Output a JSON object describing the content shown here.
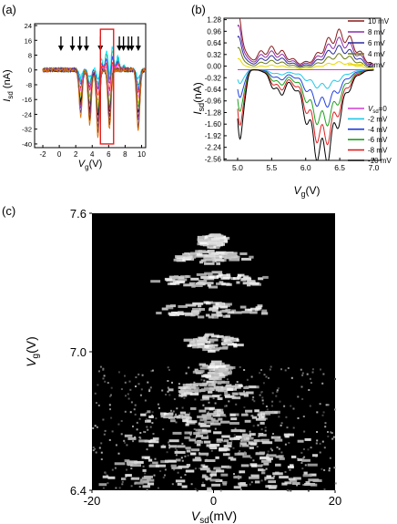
{
  "chart_data": [
    {
      "panel": "(a)",
      "type": "line",
      "xlabel": {
        "main": "V",
        "sub": "g",
        "unit": "(V)"
      },
      "ylabel": {
        "main": "I",
        "sub": "sd",
        "unit": "(nA)"
      },
      "xlim": [
        -3,
        10.5
      ],
      "ylim": [
        -42,
        25
      ],
      "xticks": [
        "-2",
        "0",
        "2",
        "4",
        "6",
        "8",
        "10"
      ],
      "xtick_values": [
        -2,
        0,
        2,
        4,
        6,
        8,
        10
      ],
      "yticks": [
        "24",
        "16",
        "8",
        "0",
        "-8",
        "-16",
        "-24",
        "-32",
        "-40"
      ],
      "ytick_values": [
        24,
        16,
        8,
        0,
        -8,
        -16,
        -24,
        -32,
        -40
      ],
      "arrow_positions": [
        0.2,
        1.6,
        2.5,
        3.3,
        5.0,
        7.3,
        7.8,
        8.4,
        8.8,
        9.6
      ],
      "highlight_box": {
        "x": [
          5.0,
          6.6
        ],
        "y": [
          -40,
          22
        ],
        "color": "#e02020"
      },
      "dip_centers": [
        2.6,
        3.7,
        4.7,
        6.1,
        9.6
      ],
      "dip_depths": [
        -25,
        -30,
        -36,
        -32,
        -33
      ]
    },
    {
      "panel": "(b)",
      "type": "line",
      "xlabel": {
        "main": "V",
        "sub": "g",
        "unit": "(V)"
      },
      "ylabel": {
        "main": "I",
        "sub": "sd",
        "unit": "(nA)"
      },
      "xlim": [
        4.8,
        7.1
      ],
      "ylim": [
        -2.6,
        1.32
      ],
      "xticks": [
        "5.0",
        "5.5",
        "6.0",
        "6.5",
        "7.0"
      ],
      "xtick_values": [
        5.0,
        5.5,
        6.0,
        6.5,
        7.0
      ],
      "yticks": [
        "1.28",
        "0.96",
        "0.64",
        "0.32",
        "0.00",
        "-0.32",
        "-0.64",
        "-0.96",
        "-1.28",
        "-1.60",
        "-1.92",
        "-2.24",
        "-2.56"
      ],
      "ytick_values": [
        1.28,
        0.96,
        0.64,
        0.32,
        0.0,
        -0.32,
        -0.64,
        -0.96,
        -1.28,
        -1.6,
        -1.92,
        -2.24,
        -2.56
      ],
      "series": [
        {
          "name": "10 mV",
          "vsd": 10,
          "color": "#8b1a1a"
        },
        {
          "name": "8 mV",
          "vsd": 8,
          "color": "#8b2fa8"
        },
        {
          "name": "6 mV",
          "vsd": 6,
          "color": "#2a2a9c"
        },
        {
          "name": "4 mV",
          "vsd": 4,
          "color": "#6b7a10"
        },
        {
          "name": "2 mV",
          "vsd": 2,
          "color": "#e8d800"
        },
        {
          "name": "V_sd=0",
          "label_main": "V",
          "label_sub": "sd",
          "label_tail": "=0",
          "vsd": 0,
          "color": "#d43ad4"
        },
        {
          "name": "-2 mV",
          "vsd": -2,
          "color": "#20c8e8"
        },
        {
          "name": "-4 mV",
          "vsd": -4,
          "color": "#2040e0"
        },
        {
          "name": "-6 mV",
          "vsd": -6,
          "color": "#20a020"
        },
        {
          "name": "-8 mV",
          "vsd": -8,
          "color": "#e02020"
        },
        {
          "name": "-10 mV",
          "vsd": -10,
          "color": "#000000"
        }
      ]
    },
    {
      "panel": "(c)",
      "type": "heatmap",
      "xlabel": {
        "main": "V",
        "sub": "sd",
        "unit": "(mV)"
      },
      "ylabel": {
        "main": "V",
        "sub": "g",
        "unit": "(V)"
      },
      "xlim": [
        -20,
        20
      ],
      "ylim": [
        6.4,
        7.6
      ],
      "xticks": [
        "-20",
        "0",
        "20"
      ],
      "xtick_values": [
        -20,
        0,
        20
      ],
      "yticks": [
        "7.6",
        "7.0",
        "6.4"
      ],
      "ytick_values": [
        7.6,
        7.0,
        6.4
      ],
      "colormap": [
        "#000000",
        "#ffffff"
      ],
      "diamond_centers_vg": [
        7.48,
        7.41,
        7.31,
        7.18,
        7.04,
        6.92,
        6.83,
        6.72,
        6.62,
        6.53,
        6.45
      ],
      "diamond_halfwidth_mv": [
        2.5,
        6,
        9,
        9,
        4,
        3,
        7,
        12,
        15,
        18,
        20
      ]
    }
  ]
}
